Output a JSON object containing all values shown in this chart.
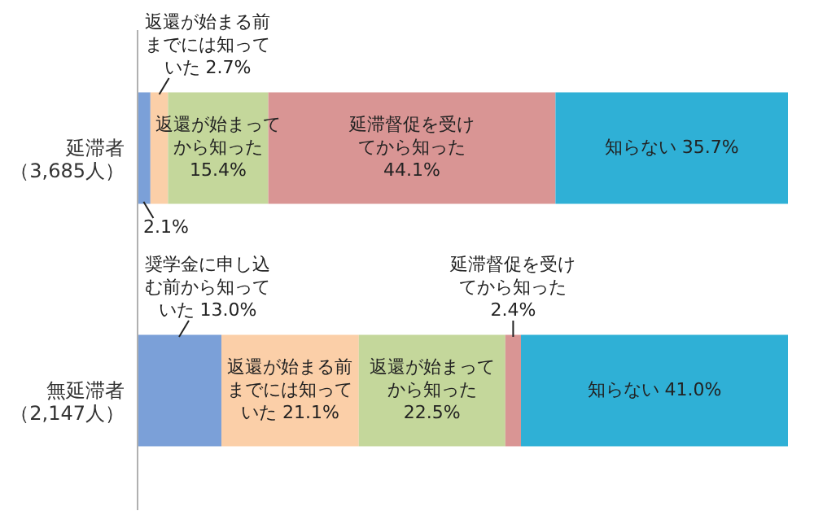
{
  "chart_data": {
    "type": "bar",
    "orientation": "horizontal",
    "stacked": true,
    "categories": [
      "延滞者（3,685人）",
      "無延滞者（2,147人）"
    ],
    "series": [
      {
        "color": "#7ba0d8",
        "values": [
          2.1,
          13.0
        ],
        "value_labels": [
          "2.1%",
          "奨学金に申し込む前から知っていた 13.0%"
        ]
      },
      {
        "color": "#fbcfa8",
        "values": [
          2.7,
          21.1
        ],
        "value_labels": [
          "返還が始まる前までには知っていた 2.7%",
          "返還が始まる前までには知っていた 21.1%"
        ]
      },
      {
        "color": "#c4d79b",
        "values": [
          15.4,
          22.5
        ],
        "value_labels": [
          "返還が始まってから知った 15.4%",
          "返還が始まってから知った 22.5%"
        ]
      },
      {
        "color": "#d99594",
        "values": [
          44.1,
          2.4
        ],
        "value_labels": [
          "延滞督促を受けてから知った 44.1%",
          "延滞督促を受けてから知った 2.4%"
        ]
      },
      {
        "color": "#2fb0d6",
        "values": [
          35.7,
          41.0
        ],
        "value_labels": [
          "知らない 35.7%",
          "知らない 41.0%"
        ]
      }
    ],
    "grid": false
  }
}
